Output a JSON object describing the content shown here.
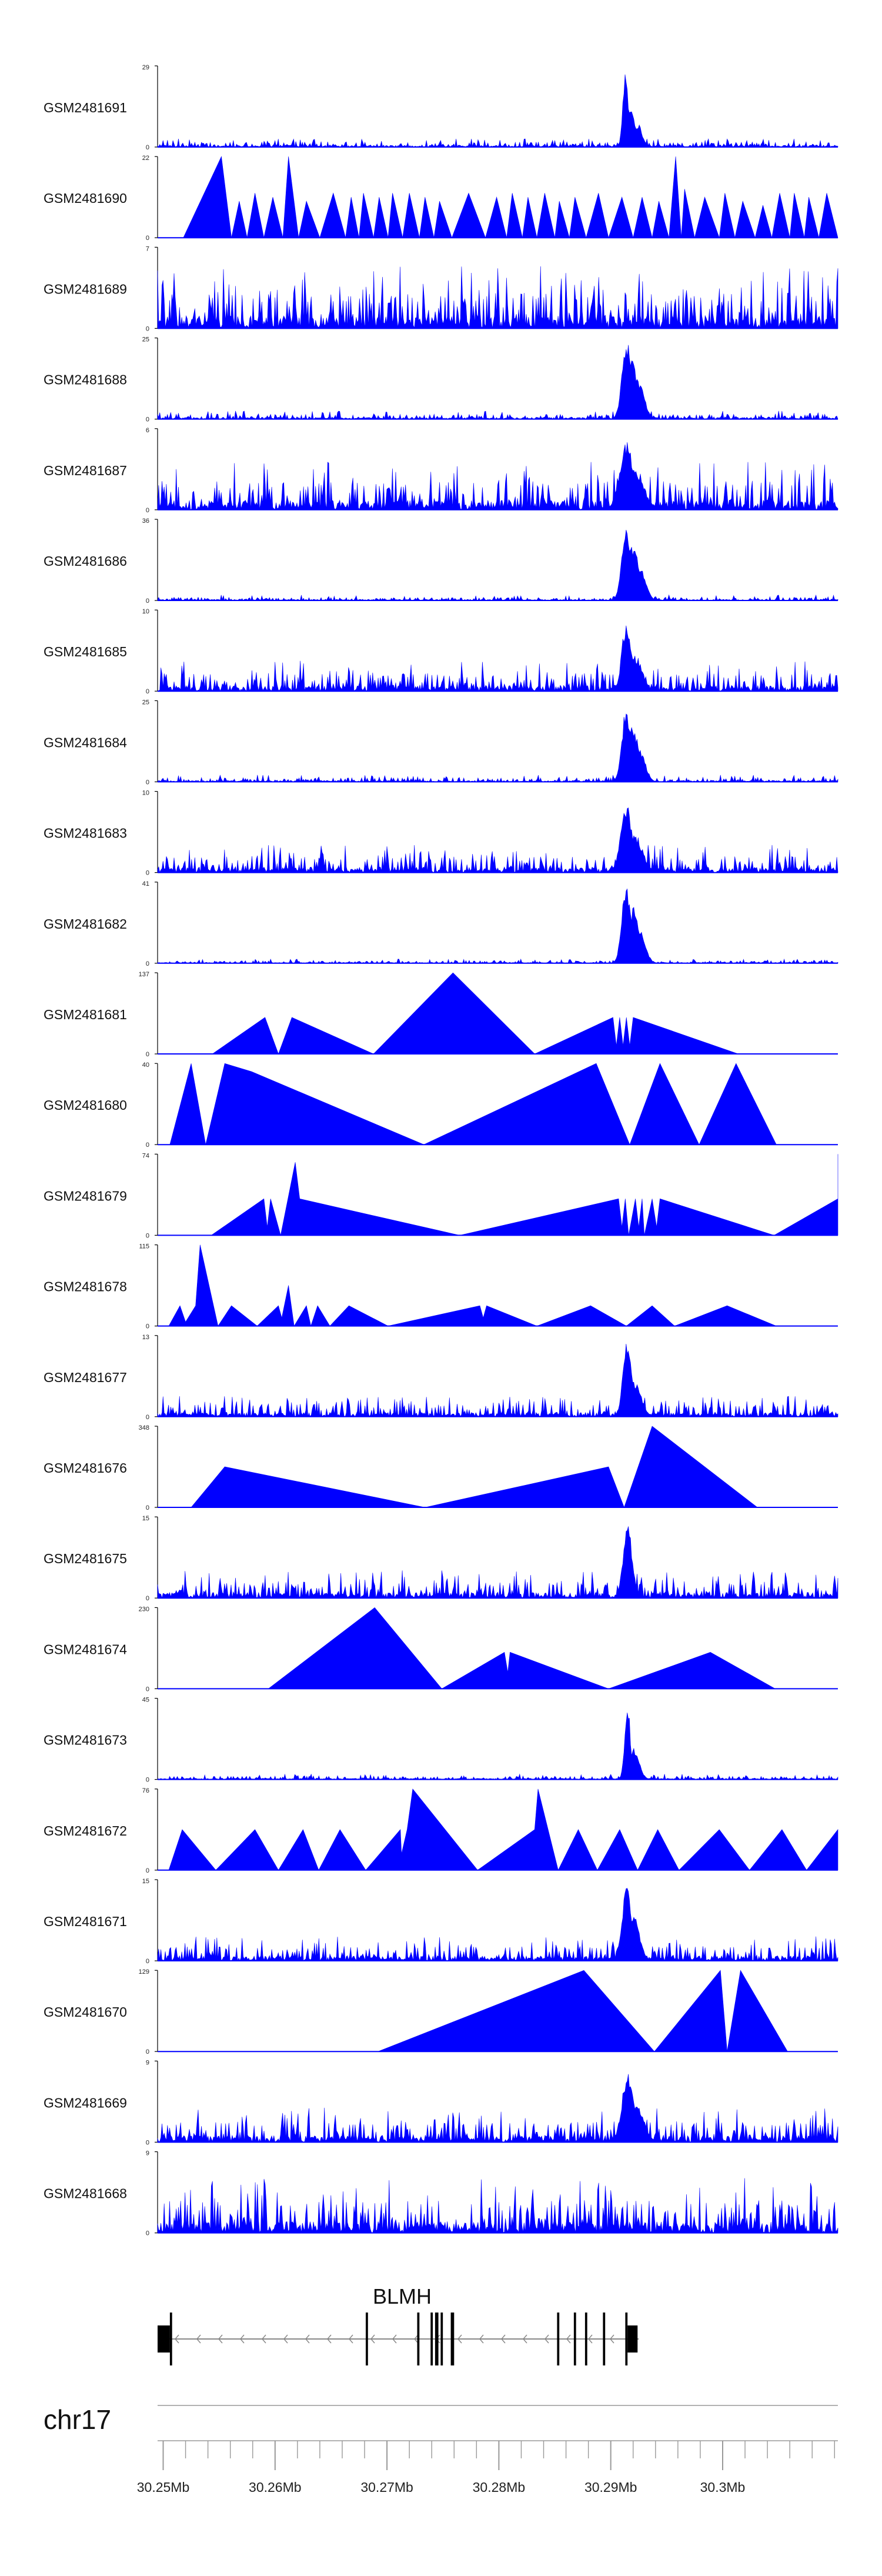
{
  "chart_data": {
    "type": "area",
    "chromosome": "chr17",
    "xlim": [
      30.2495,
      30.3103
    ],
    "x_unit": "Mb",
    "x_ticks": [
      30.25,
      30.26,
      30.27,
      30.28,
      30.29,
      30.3
    ],
    "x_tick_labels": [
      "30.25Mb",
      "30.26Mb",
      "30.27Mb",
      "30.28Mb",
      "30.29Mb",
      "30.3Mb"
    ],
    "series": [
      {
        "name": "GSM2481691",
        "ymax": 29,
        "mode": "noisy",
        "noise": 0.06,
        "peaks": [
          [
            30.2913,
            1.0,
            0.00022
          ],
          [
            30.2918,
            0.55,
            0.0003
          ],
          [
            30.2924,
            0.3,
            0.0004
          ]
        ]
      },
      {
        "name": "GSM2481690",
        "ymax": 22,
        "mode": "tri",
        "points": [
          [
            30.2518,
            0
          ],
          [
            30.2552,
            1.0
          ],
          [
            30.2561,
            0
          ],
          [
            30.2568,
            0.45
          ],
          [
            30.2575,
            0
          ],
          [
            30.2582,
            0.55
          ],
          [
            30.259,
            0
          ],
          [
            30.2598,
            0.5
          ],
          [
            30.2607,
            0
          ],
          [
            30.2612,
            1.0
          ],
          [
            30.2621,
            0
          ],
          [
            30.2628,
            0.45
          ],
          [
            30.264,
            0
          ],
          [
            30.2652,
            0.55
          ],
          [
            30.2663,
            0
          ],
          [
            30.2668,
            0.5
          ],
          [
            30.2675,
            0
          ],
          [
            30.2679,
            0.55
          ],
          [
            30.2688,
            0
          ],
          [
            30.2693,
            0.5
          ],
          [
            30.2701,
            0
          ],
          [
            30.2705,
            0.55
          ],
          [
            30.2714,
            0
          ],
          [
            30.272,
            0.55
          ],
          [
            30.2729,
            0
          ],
          [
            30.2734,
            0.5
          ],
          [
            30.2742,
            0
          ],
          [
            30.2747,
            0.45
          ],
          [
            30.2758,
            0
          ],
          [
            30.2773,
            0.55
          ],
          [
            30.2788,
            0
          ],
          [
            30.2798,
            0.5
          ],
          [
            30.2807,
            0
          ],
          [
            30.2812,
            0.55
          ],
          [
            30.2821,
            0
          ],
          [
            30.2826,
            0.5
          ],
          [
            30.2834,
            0
          ],
          [
            30.2841,
            0.55
          ],
          [
            30.285,
            0
          ],
          [
            30.2854,
            0.45
          ],
          [
            30.2863,
            0
          ],
          [
            30.2868,
            0.5
          ],
          [
            30.2878,
            0
          ],
          [
            30.2889,
            0.55
          ],
          [
            30.2898,
            0
          ],
          [
            30.291,
            0.5
          ],
          [
            30.292,
            0
          ],
          [
            30.2928,
            0.5
          ],
          [
            30.2937,
            0
          ],
          [
            30.2943,
            0.45
          ],
          [
            30.2952,
            0
          ],
          [
            30.2958,
            1.0
          ],
          [
            30.2963,
            0
          ],
          [
            30.2966,
            0.6
          ],
          [
            30.2975,
            0
          ],
          [
            30.2984,
            0.5
          ],
          [
            30.2997,
            0
          ],
          [
            30.3002,
            0.55
          ],
          [
            30.3011,
            0
          ],
          [
            30.3018,
            0.45
          ],
          [
            30.3029,
            0
          ],
          [
            30.3036,
            0.4
          ],
          [
            30.3044,
            0
          ],
          [
            30.3051,
            0.55
          ],
          [
            30.306,
            0
          ],
          [
            30.3064,
            0.55
          ],
          [
            30.3073,
            0
          ],
          [
            30.3077,
            0.5
          ],
          [
            30.3086,
            0
          ],
          [
            30.3093,
            0.55
          ],
          [
            30.3103,
            0
          ]
        ]
      },
      {
        "name": "GSM2481689",
        "ymax": 7,
        "mode": "noisy",
        "noise": 0.45,
        "peaks": []
      },
      {
        "name": "GSM2481688",
        "ymax": 25,
        "mode": "noisy",
        "noise": 0.06,
        "peaks": [
          [
            30.2914,
            1.0,
            0.0004
          ],
          [
            30.2919,
            0.75,
            0.0005
          ],
          [
            30.2925,
            0.5,
            0.0005
          ]
        ]
      },
      {
        "name": "GSM2481687",
        "ymax": 6,
        "mode": "noisy",
        "noise": 0.35,
        "peaks": [
          [
            30.2914,
            0.9,
            0.0006
          ],
          [
            30.2921,
            0.55,
            0.0008
          ]
        ]
      },
      {
        "name": "GSM2481686",
        "ymax": 36,
        "mode": "noisy",
        "noise": 0.04,
        "peaks": [
          [
            30.2914,
            1.0,
            0.0004
          ],
          [
            30.292,
            0.7,
            0.0005
          ],
          [
            30.2926,
            0.45,
            0.0005
          ]
        ]
      },
      {
        "name": "GSM2481685",
        "ymax": 10,
        "mode": "noisy",
        "noise": 0.22,
        "peaks": [
          [
            30.2914,
            0.9,
            0.0004
          ],
          [
            30.2922,
            0.45,
            0.0006
          ]
        ]
      },
      {
        "name": "GSM2481684",
        "ymax": 25,
        "mode": "noisy",
        "noise": 0.05,
        "peaks": [
          [
            30.2914,
            0.95,
            0.0004
          ],
          [
            30.292,
            0.7,
            0.0005
          ],
          [
            30.2926,
            0.4,
            0.0005
          ]
        ]
      },
      {
        "name": "GSM2481683",
        "ymax": 10,
        "mode": "noisy",
        "noise": 0.2,
        "peaks": [
          [
            30.2914,
            0.85,
            0.0005
          ],
          [
            30.2921,
            0.5,
            0.0007
          ]
        ]
      },
      {
        "name": "GSM2481682",
        "ymax": 41,
        "mode": "noisy",
        "noise": 0.03,
        "peaks": [
          [
            30.2914,
            1.0,
            0.0004
          ],
          [
            30.292,
            0.7,
            0.0005
          ],
          [
            30.2926,
            0.4,
            0.0005
          ]
        ]
      },
      {
        "name": "GSM2481681",
        "ymax": 137,
        "mode": "tri",
        "points": [
          [
            30.2544,
            0
          ],
          [
            30.2591,
            0.45
          ],
          [
            30.2603,
            0
          ],
          [
            30.2615,
            0.45
          ],
          [
            30.2688,
            0
          ],
          [
            30.2759,
            1.0
          ],
          [
            30.2832,
            0
          ],
          [
            30.2902,
            0.45
          ],
          [
            30.2905,
            0.1
          ],
          [
            30.2908,
            0.45
          ],
          [
            30.2911,
            0.1
          ],
          [
            30.2914,
            0.45
          ],
          [
            30.2917,
            0.1
          ],
          [
            30.292,
            0.45
          ],
          [
            30.3014,
            0
          ]
        ]
      },
      {
        "name": "GSM2481680",
        "ymax": 40,
        "mode": "tri",
        "points": [
          [
            30.2506,
            0
          ],
          [
            30.2525,
            1.0
          ],
          [
            30.2538,
            0
          ],
          [
            30.2555,
            1.0
          ],
          [
            30.2579,
            0.9
          ],
          [
            30.2733,
            0
          ],
          [
            30.2887,
            1.0
          ],
          [
            30.2917,
            0
          ],
          [
            30.2944,
            1.0
          ],
          [
            30.2979,
            0
          ],
          [
            30.3012,
            1.0
          ],
          [
            30.3048,
            0
          ]
        ]
      },
      {
        "name": "GSM2481679",
        "ymax": 74,
        "mode": "tri",
        "points": [
          [
            30.2543,
            0
          ],
          [
            30.259,
            0.45
          ],
          [
            30.2593,
            0.1
          ],
          [
            30.2596,
            0.45
          ],
          [
            30.2605,
            0
          ],
          [
            30.2618,
            0.9
          ],
          [
            30.2622,
            0.45
          ],
          [
            30.2765,
            0
          ],
          [
            30.2907,
            0.45
          ],
          [
            30.291,
            0.1
          ],
          [
            30.2913,
            0.45
          ],
          [
            30.2916,
            0
          ],
          [
            30.2922,
            0.45
          ],
          [
            30.2925,
            0.1
          ],
          [
            30.2928,
            0.45
          ],
          [
            30.293,
            0
          ],
          [
            30.2937,
            0.45
          ],
          [
            30.2941,
            0.1
          ],
          [
            30.2944,
            0.45
          ],
          [
            30.3046,
            0
          ],
          [
            30.3103,
            0.45
          ],
          [
            30.3103,
            1.0
          ]
        ]
      },
      {
        "name": "GSM2481678",
        "ymax": 115,
        "mode": "tri",
        "points": [
          [
            30.2505,
            0
          ],
          [
            30.2515,
            0.25
          ],
          [
            30.252,
            0.05
          ],
          [
            30.2529,
            0.25
          ],
          [
            30.2533,
            1.0
          ],
          [
            30.2549,
            0
          ],
          [
            30.2561,
            0.25
          ],
          [
            30.2584,
            0
          ],
          [
            30.2603,
            0.25
          ],
          [
            30.2606,
            0.1
          ],
          [
            30.2612,
            0.5
          ],
          [
            30.2617,
            0
          ],
          [
            30.2628,
            0.25
          ],
          [
            30.2632,
            0
          ],
          [
            30.2638,
            0.25
          ],
          [
            30.2649,
            0
          ],
          [
            30.2666,
            0.25
          ],
          [
            30.2701,
            0
          ],
          [
            30.2783,
            0.25
          ],
          [
            30.2786,
            0.1
          ],
          [
            30.2789,
            0.25
          ],
          [
            30.2834,
            0
          ],
          [
            30.2882,
            0.25
          ],
          [
            30.2914,
            0
          ],
          [
            30.2937,
            0.25
          ],
          [
            30.2957,
            0
          ],
          [
            30.3004,
            0.25
          ],
          [
            30.3048,
            0
          ]
        ]
      },
      {
        "name": "GSM2481677",
        "ymax": 13,
        "mode": "noisy",
        "noise": 0.15,
        "peaks": [
          [
            30.2915,
            0.95,
            0.0004
          ],
          [
            30.2921,
            0.45,
            0.0006
          ]
        ]
      },
      {
        "name": "GSM2481676",
        "ymax": 348,
        "mode": "tri",
        "points": [
          [
            30.2525,
            0
          ],
          [
            30.2555,
            0.5
          ],
          [
            30.2734,
            0
          ],
          [
            30.2898,
            0.5
          ],
          [
            30.2912,
            0
          ],
          [
            30.2937,
            1.0
          ],
          [
            30.3031,
            0
          ]
        ]
      },
      {
        "name": "GSM2481675",
        "ymax": 15,
        "mode": "noisy",
        "noise": 0.2,
        "peaks": [
          [
            30.2915,
            0.95,
            0.0004
          ]
        ]
      },
      {
        "name": "GSM2481674",
        "ymax": 230,
        "mode": "tri",
        "points": [
          [
            30.2594,
            0
          ],
          [
            30.2689,
            1.0
          ],
          [
            30.2749,
            0
          ],
          [
            30.2805,
            0.45
          ],
          [
            30.2808,
            0.2
          ],
          [
            30.281,
            0.45
          ],
          [
            30.2898,
            0
          ],
          [
            30.2989,
            0.45
          ],
          [
            30.3047,
            0
          ]
        ]
      },
      {
        "name": "GSM2481673",
        "ymax": 45,
        "mode": "noisy",
        "noise": 0.04,
        "peaks": [
          [
            30.2915,
            1.0,
            0.00025
          ],
          [
            30.292,
            0.4,
            0.0005
          ]
        ]
      },
      {
        "name": "GSM2481672",
        "ymax": 76,
        "mode": "tri",
        "points": [
          [
            30.2505,
            0
          ],
          [
            30.2517,
            0.5
          ],
          [
            30.2547,
            0
          ],
          [
            30.2582,
            0.5
          ],
          [
            30.2603,
            0
          ],
          [
            30.2625,
            0.5
          ],
          [
            30.2639,
            0
          ],
          [
            30.2658,
            0.5
          ],
          [
            30.2681,
            0
          ],
          [
            30.2712,
            0.5
          ],
          [
            30.2713,
            0.2
          ],
          [
            30.2718,
            0.5
          ],
          [
            30.2723,
            1.0
          ],
          [
            30.2781,
            0
          ],
          [
            30.2832,
            0.5
          ],
          [
            30.2835,
            1.0
          ],
          [
            30.2853,
            0
          ],
          [
            30.2871,
            0.5
          ],
          [
            30.2888,
            0
          ],
          [
            30.2908,
            0.5
          ],
          [
            30.2924,
            0
          ],
          [
            30.2942,
            0.5
          ],
          [
            30.2961,
            0
          ],
          [
            30.2997,
            0.5
          ],
          [
            30.3024,
            0
          ],
          [
            30.3053,
            0.5
          ],
          [
            30.3075,
            0
          ],
          [
            30.3103,
            0.5
          ],
          [
            30.3103,
            0
          ]
        ]
      },
      {
        "name": "GSM2481671",
        "ymax": 15,
        "mode": "noisy",
        "noise": 0.18,
        "peaks": [
          [
            30.2914,
            0.95,
            0.0004
          ],
          [
            30.2921,
            0.55,
            0.0005
          ]
        ]
      },
      {
        "name": "GSM2481670",
        "ymax": 129,
        "mode": "tri",
        "points": [
          [
            30.2692,
            0
          ],
          [
            30.2876,
            1.0
          ],
          [
            30.2939,
            0
          ],
          [
            30.2998,
            1.0
          ],
          [
            30.3004,
            0
          ],
          [
            30.3016,
            1.0
          ],
          [
            30.3058,
            0
          ]
        ]
      },
      {
        "name": "GSM2481669",
        "ymax": 9,
        "mode": "noisy",
        "noise": 0.25,
        "peaks": [
          [
            30.2915,
            0.9,
            0.0005
          ],
          [
            30.2922,
            0.5,
            0.0007
          ]
        ]
      },
      {
        "name": "GSM2481668",
        "ymax": 9,
        "mode": "noisy",
        "noise": 0.4,
        "peaks": []
      }
    ],
    "gene_track": {
      "gene": "BLMH",
      "strand": "-",
      "start": 30.2495,
      "end": 30.2925,
      "exons": [
        [
          30.2495,
          30.2506,
          "utr"
        ],
        [
          30.2506,
          30.2508,
          "cds"
        ],
        [
          30.2681,
          30.2683,
          "cds"
        ],
        [
          30.2727,
          30.2729,
          "cds"
        ],
        [
          30.2739,
          30.2741,
          "cds"
        ],
        [
          30.2743,
          30.2746,
          "cds"
        ],
        [
          30.2748,
          30.275,
          "cds"
        ],
        [
          30.2757,
          30.276,
          "cds"
        ],
        [
          30.2852,
          30.2854,
          "cds"
        ],
        [
          30.2867,
          30.2869,
          "cds"
        ],
        [
          30.2877,
          30.2879,
          "cds"
        ],
        [
          30.2893,
          30.2895,
          "cds"
        ],
        [
          30.2913,
          30.2915,
          "cds"
        ],
        [
          30.2915,
          30.2924,
          "utr"
        ]
      ]
    }
  }
}
